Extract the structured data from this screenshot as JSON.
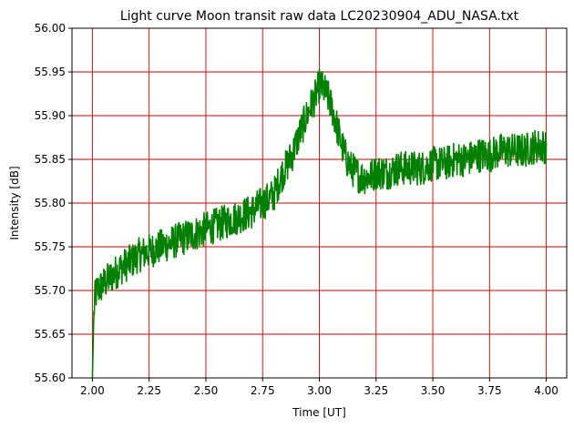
{
  "chart_data": {
    "type": "line",
    "title": "Light curve Moon transit raw data LC20230904_ADU_NASA.txt",
    "xlabel": "Time [UT]",
    "ylabel": "Intensity [dB]",
    "xlim": [
      1.91,
      4.09
    ],
    "ylim": [
      55.6,
      56.0
    ],
    "xticks": [
      2.0,
      2.25,
      2.5,
      2.75,
      3.0,
      3.25,
      3.5,
      3.75,
      4.0
    ],
    "xtick_labels": [
      "2.00",
      "2.25",
      "2.50",
      "2.75",
      "3.00",
      "3.25",
      "3.50",
      "3.75",
      "4.00"
    ],
    "yticks": [
      55.6,
      55.65,
      55.7,
      55.75,
      55.8,
      55.85,
      55.9,
      55.95,
      56.0
    ],
    "ytick_labels": [
      "55.60",
      "55.65",
      "55.70",
      "55.75",
      "55.80",
      "55.85",
      "55.90",
      "55.95",
      "56.00"
    ],
    "grid": true,
    "colors": {
      "series": "#008000",
      "grid": "#cc0000"
    },
    "series": [
      {
        "x": [
          2.0,
          2.005,
          2.01,
          2.02,
          2.04,
          2.06,
          2.08,
          2.1,
          2.12,
          2.15,
          2.18,
          2.2,
          2.25,
          2.3,
          2.35,
          2.4,
          2.45,
          2.5,
          2.55,
          2.6,
          2.65,
          2.7,
          2.75,
          2.78,
          2.8,
          2.83,
          2.86,
          2.88,
          2.9,
          2.93,
          2.96,
          2.98,
          3.0,
          3.02,
          3.04,
          3.06,
          3.08,
          3.1,
          3.12,
          3.14,
          3.16,
          3.18,
          3.2,
          3.22,
          3.25,
          3.3,
          3.35,
          3.4,
          3.45,
          3.5,
          3.55,
          3.6,
          3.65,
          3.7,
          3.75,
          3.8,
          3.85,
          3.9,
          3.95,
          4.0
        ],
        "values": [
          55.6,
          55.66,
          55.69,
          55.7,
          55.705,
          55.71,
          55.715,
          55.72,
          55.725,
          55.73,
          55.735,
          55.74,
          55.745,
          55.75,
          55.755,
          55.76,
          55.765,
          55.77,
          55.775,
          55.78,
          55.785,
          55.79,
          55.8,
          55.805,
          55.81,
          55.83,
          55.845,
          55.855,
          55.87,
          55.89,
          55.91,
          55.92,
          55.935,
          55.93,
          55.92,
          55.905,
          55.885,
          55.865,
          55.85,
          55.84,
          55.835,
          55.83,
          55.83,
          55.83,
          55.835,
          55.835,
          55.84,
          55.84,
          55.84,
          55.845,
          55.845,
          55.85,
          55.85,
          55.855,
          55.855,
          55.86,
          55.86,
          55.86,
          55.865,
          55.865
        ]
      }
    ]
  }
}
